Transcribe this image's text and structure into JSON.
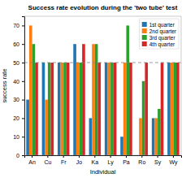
{
  "chart_data": {
    "type": "bar",
    "title": "Success rate evolution during the 'two tube' test",
    "xlabel": "Individual",
    "ylabel": "success rate",
    "categories": [
      "An",
      "Cu",
      "Fr",
      "Jo",
      "Ka",
      "Ly",
      "Pa",
      "Ro",
      "Sy",
      "Wy"
    ],
    "series": [
      {
        "name": "1st quarter",
        "values": [
          30,
          50,
          50,
          60,
          20,
          50,
          10,
          0,
          20,
          50
        ]
      },
      {
        "name": "2nd quarter",
        "values": [
          70,
          30,
          50,
          50,
          60,
          50,
          50,
          20,
          20,
          50
        ]
      },
      {
        "name": "3rd quarter",
        "values": [
          60,
          50,
          50,
          50,
          60,
          50,
          70,
          40,
          25,
          50
        ]
      },
      {
        "name": "4th quarter",
        "values": [
          50,
          50,
          50,
          60,
          50,
          50,
          50,
          50,
          50,
          50
        ]
      }
    ],
    "reference_line": 50,
    "ylim": [
      0,
      75
    ],
    "yticks": [
      0,
      10,
      20,
      30,
      40,
      50,
      60,
      70
    ],
    "grid": false,
    "legend": "upper right"
  }
}
